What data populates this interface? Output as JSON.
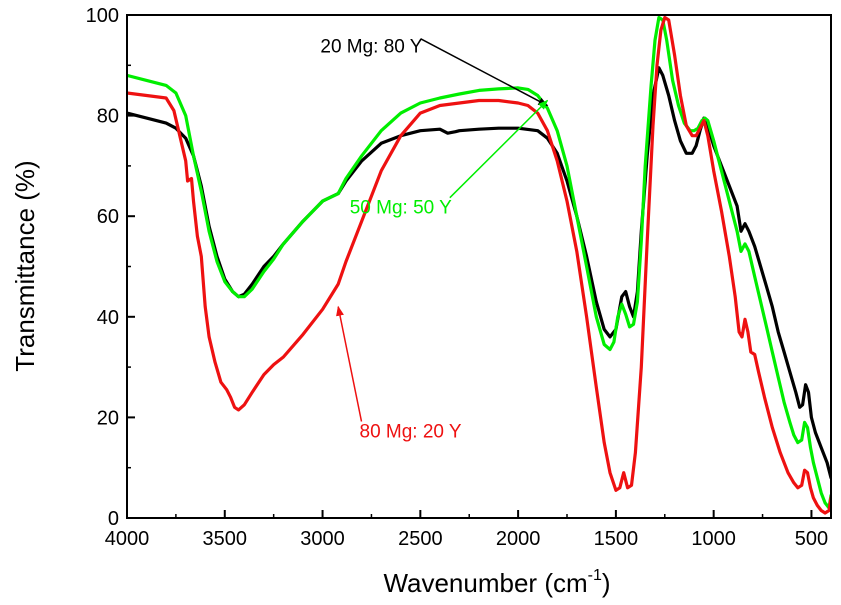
{
  "chart_data": {
    "type": "line",
    "title": "",
    "xlabel": "Wavenumber (cm",
    "xlabel_sup": "-1",
    "xlabel_suffix": ")",
    "ylabel": "Transmittance (%)",
    "xlim": [
      4000,
      400
    ],
    "ylim": [
      0,
      100
    ],
    "x_reversed": true,
    "xticks": [
      4000,
      3500,
      3000,
      2500,
      2000,
      1500,
      1000,
      500
    ],
    "yticks": [
      0,
      20,
      40,
      60,
      80,
      100
    ],
    "grid": false,
    "legend": "none",
    "series": [
      {
        "name": "20 Mg: 80 Y",
        "color": "#000000",
        "points": [
          [
            4000,
            80.5
          ],
          [
            3900,
            79.5
          ],
          [
            3800,
            78.5
          ],
          [
            3750,
            77.5
          ],
          [
            3700,
            75.5
          ],
          [
            3660,
            72
          ],
          [
            3620,
            66
          ],
          [
            3580,
            58
          ],
          [
            3540,
            52
          ],
          [
            3500,
            47.5
          ],
          [
            3460,
            45
          ],
          [
            3430,
            44
          ],
          [
            3400,
            44.5
          ],
          [
            3360,
            46.5
          ],
          [
            3300,
            50
          ],
          [
            3250,
            52
          ],
          [
            3200,
            54.5
          ],
          [
            3100,
            59
          ],
          [
            3000,
            63
          ],
          [
            2920,
            64.5
          ],
          [
            2880,
            67
          ],
          [
            2800,
            71
          ],
          [
            2700,
            74.5
          ],
          [
            2600,
            76
          ],
          [
            2500,
            77
          ],
          [
            2400,
            77.3
          ],
          [
            2360,
            76.5
          ],
          [
            2320,
            76.8
          ],
          [
            2300,
            77
          ],
          [
            2200,
            77.3
          ],
          [
            2100,
            77.5
          ],
          [
            2000,
            77.5
          ],
          [
            1900,
            77
          ],
          [
            1850,
            75.5
          ],
          [
            1800,
            72.5
          ],
          [
            1750,
            67
          ],
          [
            1700,
            60
          ],
          [
            1650,
            52
          ],
          [
            1600,
            43
          ],
          [
            1560,
            37.5
          ],
          [
            1530,
            36
          ],
          [
            1500,
            37.5
          ],
          [
            1470,
            44
          ],
          [
            1450,
            45
          ],
          [
            1430,
            42
          ],
          [
            1410,
            40
          ],
          [
            1390,
            45
          ],
          [
            1370,
            57
          ],
          [
            1340,
            72
          ],
          [
            1310,
            84
          ],
          [
            1280,
            89.5
          ],
          [
            1260,
            88
          ],
          [
            1230,
            84
          ],
          [
            1200,
            79
          ],
          [
            1170,
            75
          ],
          [
            1140,
            72.5
          ],
          [
            1110,
            72.5
          ],
          [
            1090,
            74
          ],
          [
            1070,
            77
          ],
          [
            1050,
            79.5
          ],
          [
            1030,
            78
          ],
          [
            1000,
            74
          ],
          [
            960,
            70
          ],
          [
            920,
            66
          ],
          [
            880,
            62
          ],
          [
            860,
            57
          ],
          [
            840,
            58.5
          ],
          [
            820,
            57
          ],
          [
            790,
            54
          ],
          [
            760,
            50
          ],
          [
            730,
            46
          ],
          [
            700,
            42
          ],
          [
            670,
            37
          ],
          [
            640,
            33
          ],
          [
            610,
            29
          ],
          [
            580,
            25
          ],
          [
            560,
            22
          ],
          [
            545,
            22.5
          ],
          [
            530,
            26.5
          ],
          [
            515,
            25
          ],
          [
            500,
            20
          ],
          [
            480,
            17
          ],
          [
            450,
            14
          ],
          [
            420,
            11
          ],
          [
            400,
            8
          ]
        ]
      },
      {
        "name": "50 Mg: 50 Y",
        "color": "#00ee00",
        "points": [
          [
            4000,
            88
          ],
          [
            3900,
            87
          ],
          [
            3800,
            86
          ],
          [
            3750,
            84.5
          ],
          [
            3700,
            80
          ],
          [
            3660,
            72
          ],
          [
            3620,
            65
          ],
          [
            3580,
            57
          ],
          [
            3540,
            51
          ],
          [
            3500,
            47
          ],
          [
            3460,
            45
          ],
          [
            3430,
            44
          ],
          [
            3400,
            44
          ],
          [
            3360,
            45.5
          ],
          [
            3300,
            49
          ],
          [
            3250,
            51.5
          ],
          [
            3200,
            54.5
          ],
          [
            3100,
            59
          ],
          [
            3000,
            63
          ],
          [
            2920,
            64.5
          ],
          [
            2880,
            67.5
          ],
          [
            2800,
            72
          ],
          [
            2700,
            77
          ],
          [
            2600,
            80.5
          ],
          [
            2500,
            82.5
          ],
          [
            2400,
            83.5
          ],
          [
            2300,
            84.3
          ],
          [
            2200,
            85
          ],
          [
            2100,
            85.3
          ],
          [
            2000,
            85.5
          ],
          [
            1950,
            85.2
          ],
          [
            1900,
            84
          ],
          [
            1850,
            81.5
          ],
          [
            1800,
            77
          ],
          [
            1750,
            70
          ],
          [
            1700,
            60
          ],
          [
            1650,
            50
          ],
          [
            1600,
            40
          ],
          [
            1560,
            34.5
          ],
          [
            1530,
            33.5
          ],
          [
            1510,
            35
          ],
          [
            1490,
            40
          ],
          [
            1470,
            42.5
          ],
          [
            1450,
            40.5
          ],
          [
            1430,
            38
          ],
          [
            1410,
            38.5
          ],
          [
            1390,
            43
          ],
          [
            1370,
            55
          ],
          [
            1350,
            70
          ],
          [
            1320,
            86
          ],
          [
            1300,
            95
          ],
          [
            1280,
            99.5
          ],
          [
            1260,
            99
          ],
          [
            1240,
            95
          ],
          [
            1210,
            87
          ],
          [
            1180,
            82
          ],
          [
            1150,
            78.5
          ],
          [
            1120,
            77
          ],
          [
            1100,
            77
          ],
          [
            1080,
            77.5
          ],
          [
            1060,
            79
          ],
          [
            1045,
            79.5
          ],
          [
            1030,
            79
          ],
          [
            1000,
            75
          ],
          [
            960,
            69
          ],
          [
            920,
            63
          ],
          [
            880,
            57
          ],
          [
            860,
            53
          ],
          [
            840,
            54.5
          ],
          [
            820,
            53
          ],
          [
            790,
            48
          ],
          [
            760,
            43
          ],
          [
            730,
            38
          ],
          [
            700,
            33
          ],
          [
            670,
            28
          ],
          [
            640,
            23
          ],
          [
            610,
            19
          ],
          [
            590,
            16.5
          ],
          [
            570,
            15
          ],
          [
            550,
            15.5
          ],
          [
            535,
            19
          ],
          [
            520,
            18
          ],
          [
            505,
            14
          ],
          [
            490,
            11
          ],
          [
            470,
            8
          ],
          [
            450,
            5
          ],
          [
            430,
            3
          ],
          [
            410,
            2
          ],
          [
            400,
            4.5
          ]
        ]
      },
      {
        "name": "80 Mg: 20 Y",
        "color": "#ee1111",
        "points": [
          [
            4000,
            84.5
          ],
          [
            3900,
            84
          ],
          [
            3800,
            83.5
          ],
          [
            3760,
            81
          ],
          [
            3730,
            76
          ],
          [
            3700,
            71
          ],
          [
            3690,
            67
          ],
          [
            3670,
            67.5
          ],
          [
            3660,
            63
          ],
          [
            3640,
            56
          ],
          [
            3620,
            52
          ],
          [
            3600,
            42
          ],
          [
            3580,
            36
          ],
          [
            3550,
            31
          ],
          [
            3520,
            27
          ],
          [
            3490,
            25.5
          ],
          [
            3470,
            24
          ],
          [
            3450,
            22
          ],
          [
            3430,
            21.5
          ],
          [
            3400,
            22.5
          ],
          [
            3360,
            25
          ],
          [
            3300,
            28.5
          ],
          [
            3250,
            30.5
          ],
          [
            3200,
            32
          ],
          [
            3100,
            36.5
          ],
          [
            3000,
            41.5
          ],
          [
            2920,
            46.5
          ],
          [
            2880,
            51
          ],
          [
            2800,
            59
          ],
          [
            2700,
            69
          ],
          [
            2600,
            76
          ],
          [
            2500,
            80.5
          ],
          [
            2400,
            82
          ],
          [
            2300,
            82.5
          ],
          [
            2200,
            83
          ],
          [
            2100,
            83
          ],
          [
            2000,
            82.5
          ],
          [
            1950,
            82
          ],
          [
            1900,
            80.5
          ],
          [
            1850,
            77
          ],
          [
            1800,
            71
          ],
          [
            1750,
            63
          ],
          [
            1700,
            53
          ],
          [
            1650,
            40
          ],
          [
            1600,
            26
          ],
          [
            1560,
            15
          ],
          [
            1530,
            9
          ],
          [
            1500,
            5.5
          ],
          [
            1480,
            6
          ],
          [
            1460,
            9
          ],
          [
            1440,
            6
          ],
          [
            1420,
            6.5
          ],
          [
            1400,
            13
          ],
          [
            1370,
            30
          ],
          [
            1340,
            55
          ],
          [
            1310,
            78
          ],
          [
            1290,
            90
          ],
          [
            1270,
            97
          ],
          [
            1250,
            99.5
          ],
          [
            1230,
            99
          ],
          [
            1200,
            92
          ],
          [
            1170,
            84
          ],
          [
            1140,
            78
          ],
          [
            1110,
            76
          ],
          [
            1090,
            76
          ],
          [
            1070,
            77.5
          ],
          [
            1050,
            79
          ],
          [
            1030,
            76
          ],
          [
            1000,
            69
          ],
          [
            960,
            61
          ],
          [
            920,
            52
          ],
          [
            890,
            44
          ],
          [
            870,
            37
          ],
          [
            855,
            36
          ],
          [
            840,
            39.5
          ],
          [
            825,
            37
          ],
          [
            810,
            33
          ],
          [
            790,
            32.5
          ],
          [
            770,
            29
          ],
          [
            740,
            24
          ],
          [
            700,
            18
          ],
          [
            660,
            13
          ],
          [
            620,
            9
          ],
          [
            590,
            7
          ],
          [
            570,
            6
          ],
          [
            550,
            6.5
          ],
          [
            535,
            9.5
          ],
          [
            520,
            9
          ],
          [
            505,
            6
          ],
          [
            490,
            4
          ],
          [
            470,
            2.5
          ],
          [
            450,
            1.5
          ],
          [
            430,
            1
          ],
          [
            410,
            1.5
          ],
          [
            400,
            4
          ]
        ]
      }
    ],
    "annotations": [
      {
        "text": "20 Mg: 80 Y",
        "color": "#000000",
        "text_x": 2750,
        "text_y": 92.5,
        "arrow_to_x": 1850,
        "arrow_to_y": 82
      },
      {
        "text": "50 Mg: 50 Y",
        "color": "#00ee00",
        "text_x": 2600,
        "text_y": 60.5,
        "arrow_to_x": 1850,
        "arrow_to_y": 83
      },
      {
        "text": "80 Mg: 20 Y",
        "color": "#ee1111",
        "text_x": 2550,
        "text_y": 16,
        "arrow_to_x": 2920,
        "arrow_to_y": 42
      }
    ]
  }
}
